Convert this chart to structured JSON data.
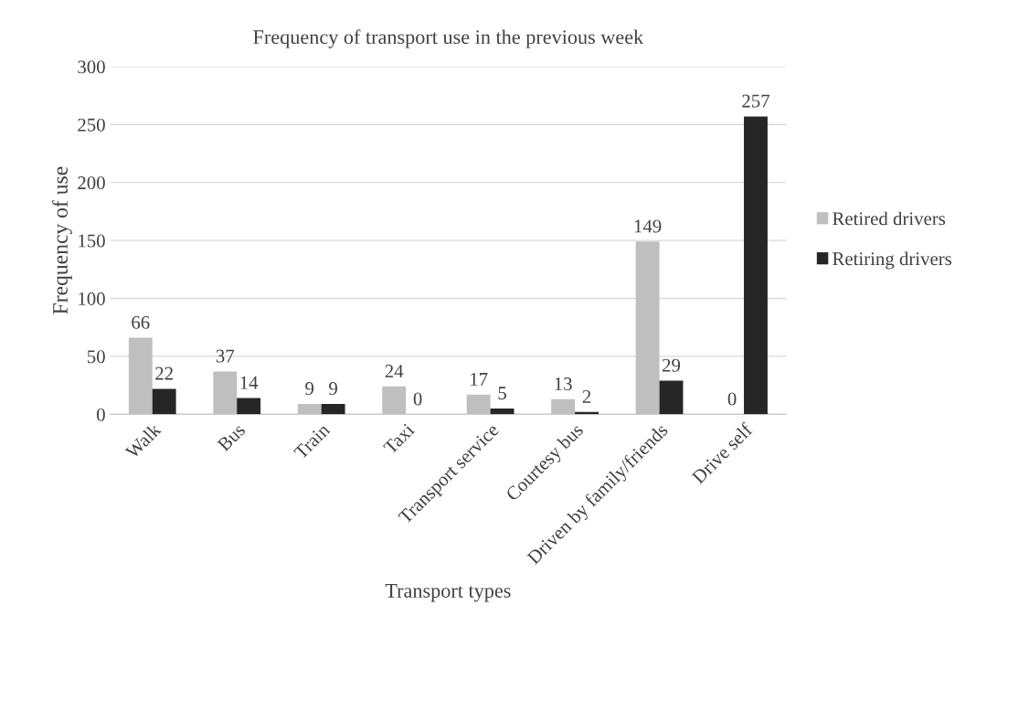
{
  "chart_data": {
    "type": "bar",
    "title": "Frequency of transport use in the previous week",
    "xlabel": "Transport types",
    "ylabel": "Frequency of use",
    "categories": [
      "Walk",
      "Bus",
      "Train",
      "Taxi",
      "Transport service",
      "Courtesy bus",
      "Driven by family/friends",
      "Drive self"
    ],
    "series": [
      {
        "name": "Retired drivers",
        "color": "#bfbfbf",
        "values": [
          66,
          37,
          9,
          24,
          17,
          13,
          149,
          0
        ]
      },
      {
        "name": "Retiring drivers",
        "color": "#262626",
        "values": [
          22,
          14,
          9,
          0,
          5,
          2,
          29,
          257
        ]
      }
    ],
    "ylim": [
      0,
      300
    ],
    "yticks": [
      0,
      50,
      100,
      150,
      200,
      250,
      300
    ],
    "grid": "y",
    "legend": "right",
    "data_labels": true
  }
}
